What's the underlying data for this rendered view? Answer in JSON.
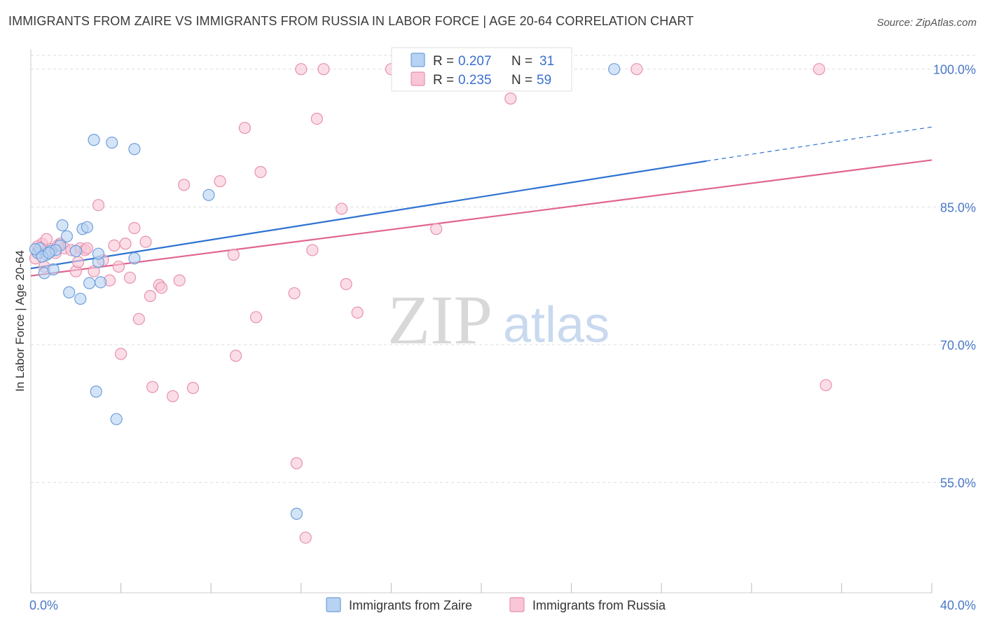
{
  "header": {
    "title": "IMMIGRANTS FROM ZAIRE VS IMMIGRANTS FROM RUSSIA IN LABOR FORCE | AGE 20-64 CORRELATION CHART",
    "source": "Source: ZipAtlas.com"
  },
  "watermark": {
    "zip": "ZIP",
    "atlas": "atlas"
  },
  "colors": {
    "zaire_fill": "#b7d2f2",
    "zaire_stroke": "#6f9fdc",
    "zaire_line": "#2e72d2",
    "russia_fill": "#f8c6d6",
    "russia_stroke": "#e891ae",
    "russia_line": "#e0648e",
    "grid": "#dddddd",
    "axis_text": "#4a78c8"
  },
  "stats": {
    "zaire": {
      "r_label": "R =",
      "r": "0.207",
      "n_label": "N =",
      "n": "31"
    },
    "russia": {
      "r_label": "R =",
      "r": "0.235",
      "n_label": "N =",
      "n": "59"
    }
  },
  "chart_data": {
    "type": "scatter",
    "title": "IMMIGRANTS FROM ZAIRE VS IMMIGRANTS FROM RUSSIA IN LABOR FORCE | AGE 20-64 CORRELATION CHART",
    "xlabel": "",
    "ylabel": "In Labor Force | Age 20-64",
    "xlim": [
      0,
      40
    ],
    "ylim": [
      43,
      101.5
    ],
    "x_tick_labels": [
      "0.0%",
      "40.0%"
    ],
    "y_ticks": [
      55,
      70,
      85,
      100
    ],
    "y_tick_labels": [
      "55.0%",
      "70.0%",
      "85.0%",
      "100.0%"
    ],
    "legend_position": "bottom-center",
    "series": [
      {
        "name": "Immigrants from Zaire",
        "color": "#6f9fdc",
        "trend": {
          "x0": 0,
          "y0": 78.3,
          "x1": 30,
          "y1": 90.0,
          "dash_to_x": 40,
          "dash_to_y": 93.7
        },
        "points": [
          [
            0.3,
            80.0
          ],
          [
            0.4,
            80.5
          ],
          [
            0.6,
            77.8
          ],
          [
            0.7,
            79.8
          ],
          [
            0.9,
            80.2
          ],
          [
            1.0,
            78.2
          ],
          [
            1.3,
            80.8
          ],
          [
            1.4,
            83.0
          ],
          [
            1.6,
            81.8
          ],
          [
            1.7,
            75.7
          ],
          [
            2.2,
            75.0
          ],
          [
            2.3,
            82.6
          ],
          [
            2.5,
            82.8
          ],
          [
            2.6,
            76.7
          ],
          [
            2.8,
            92.3
          ],
          [
            2.9,
            64.9
          ],
          [
            3.0,
            79.0
          ],
          [
            3.1,
            76.8
          ],
          [
            3.6,
            92.0
          ],
          [
            3.8,
            61.9
          ],
          [
            4.6,
            91.3
          ],
          [
            4.6,
            79.4
          ],
          [
            7.9,
            86.3
          ],
          [
            11.8,
            51.6
          ],
          [
            25.9,
            100.0
          ],
          [
            0.2,
            80.4
          ],
          [
            0.5,
            79.6
          ],
          [
            1.1,
            80.3
          ],
          [
            2.0,
            80.2
          ],
          [
            3.0,
            79.9
          ],
          [
            0.8,
            80.0
          ]
        ]
      },
      {
        "name": "Immigrants from Russia",
        "color": "#e891ae",
        "trend": {
          "x0": 0,
          "y0": 77.5,
          "x1": 40,
          "y1": 90.1
        },
        "points": [
          [
            0.2,
            79.4
          ],
          [
            0.4,
            80.0
          ],
          [
            0.5,
            81.0
          ],
          [
            0.6,
            78.5
          ],
          [
            0.7,
            81.5
          ],
          [
            0.9,
            80.4
          ],
          [
            1.1,
            80.0
          ],
          [
            1.3,
            81.0
          ],
          [
            1.5,
            80.5
          ],
          [
            1.8,
            80.3
          ],
          [
            2.0,
            78.0
          ],
          [
            2.2,
            80.5
          ],
          [
            2.4,
            80.3
          ],
          [
            2.5,
            80.5
          ],
          [
            2.8,
            78.0
          ],
          [
            3.0,
            85.2
          ],
          [
            3.2,
            79.2
          ],
          [
            3.5,
            77.0
          ],
          [
            3.7,
            80.8
          ],
          [
            3.9,
            78.5
          ],
          [
            4.0,
            69.0
          ],
          [
            4.2,
            81.0
          ],
          [
            4.4,
            77.3
          ],
          [
            4.6,
            82.7
          ],
          [
            4.8,
            72.8
          ],
          [
            5.1,
            81.2
          ],
          [
            5.3,
            75.3
          ],
          [
            5.4,
            65.4
          ],
          [
            5.7,
            76.5
          ],
          [
            5.8,
            76.2
          ],
          [
            6.3,
            64.4
          ],
          [
            6.6,
            77.0
          ],
          [
            6.8,
            87.4
          ],
          [
            7.2,
            65.3
          ],
          [
            8.4,
            87.8
          ],
          [
            9.0,
            79.8
          ],
          [
            9.1,
            68.8
          ],
          [
            9.5,
            93.6
          ],
          [
            10.0,
            73.0
          ],
          [
            10.2,
            88.8
          ],
          [
            11.7,
            75.6
          ],
          [
            11.8,
            57.1
          ],
          [
            12.0,
            100.0
          ],
          [
            12.2,
            49.0
          ],
          [
            12.5,
            80.3
          ],
          [
            12.7,
            94.6
          ],
          [
            13.0,
            100.0
          ],
          [
            13.8,
            84.8
          ],
          [
            14.0,
            76.6
          ],
          [
            14.5,
            73.5
          ],
          [
            16.0,
            100.0
          ],
          [
            18.0,
            82.6
          ],
          [
            21.3,
            96.8
          ],
          [
            26.9,
            100.0
          ],
          [
            35.0,
            100.0
          ],
          [
            35.3,
            65.6
          ],
          [
            1.2,
            80.8
          ],
          [
            2.1,
            79.0
          ],
          [
            0.3,
            80.7
          ]
        ]
      }
    ]
  }
}
